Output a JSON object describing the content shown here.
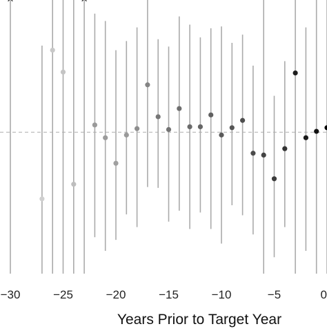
{
  "chart_data": {
    "type": "scatter",
    "subtype": "point-estimate-with-interval",
    "xlabel": "Years Prior to Target Year",
    "ylabel": "",
    "title": "",
    "xlim": [
      -30,
      0
    ],
    "ylim": [
      -1.55,
      1.45
    ],
    "x_ticks": [
      -30,
      -25,
      -20,
      -15,
      -10,
      -5,
      0
    ],
    "x_tick_labels": [
      "−30",
      "−25",
      "−20",
      "−15",
      "−10",
      "−5",
      "0"
    ],
    "reference_line": {
      "y": 0,
      "style": "dashed",
      "color": "#bdbdbd"
    },
    "grid": false,
    "legend": "none",
    "interval_color": "#aaaaaa",
    "top_markers": [
      {
        "x": -30,
        "symbol": "×"
      },
      {
        "x": -23,
        "symbol": "×"
      }
    ],
    "points": [
      {
        "x": -30,
        "y": null,
        "lo": -1.55,
        "hi": 1.45,
        "color": "#d9d9d9"
      },
      {
        "x": -27,
        "y": -0.73,
        "lo": -1.55,
        "hi": 0.95,
        "color": "#cfcfcf"
      },
      {
        "x": -26,
        "y": 0.9,
        "lo": -1.55,
        "hi": 1.45,
        "color": "#c8c8c8"
      },
      {
        "x": -25,
        "y": 0.66,
        "lo": -1.55,
        "hi": 1.45,
        "color": "#c4c4c4"
      },
      {
        "x": -24,
        "y": -0.57,
        "lo": -1.55,
        "hi": 1.45,
        "color": "#bebebe"
      },
      {
        "x": -23,
        "y": null,
        "lo": -1.55,
        "hi": 1.45,
        "color": "#bababa"
      },
      {
        "x": -22,
        "y": 0.08,
        "lo": -1.15,
        "hi": 1.3,
        "color": "#9a9a9a"
      },
      {
        "x": -21,
        "y": -0.06,
        "lo": -1.3,
        "hi": 1.22,
        "color": "#9c9c9c"
      },
      {
        "x": -20,
        "y": -0.34,
        "lo": -1.18,
        "hi": 0.9,
        "color": "#a0a0a0"
      },
      {
        "x": -19,
        "y": -0.03,
        "lo": -0.9,
        "hi": 1.0,
        "color": "#9a9a9a"
      },
      {
        "x": -18,
        "y": 0.04,
        "lo": -1.04,
        "hi": 1.15,
        "color": "#8e8e8e"
      },
      {
        "x": -17,
        "y": 0.52,
        "lo": -0.6,
        "hi": 1.45,
        "color": "#848484"
      },
      {
        "x": -16,
        "y": 0.17,
        "lo": -0.61,
        "hi": 1.02,
        "color": "#767676"
      },
      {
        "x": -15,
        "y": 0.03,
        "lo": -0.98,
        "hi": 0.94,
        "color": "#747474"
      },
      {
        "x": -14,
        "y": 0.26,
        "lo": -0.86,
        "hi": 1.27,
        "color": "#6e6e6e"
      },
      {
        "x": -13,
        "y": 0.06,
        "lo": -1.06,
        "hi": 1.18,
        "color": "#6a6a6a"
      },
      {
        "x": -12,
        "y": 0.06,
        "lo": -0.88,
        "hi": 1.04,
        "color": "#666666"
      },
      {
        "x": -11,
        "y": 0.19,
        "lo": -1.06,
        "hi": 1.14,
        "color": "#606060"
      },
      {
        "x": -10,
        "y": -0.03,
        "lo": -1.22,
        "hi": 1.16,
        "color": "#5a5a5a"
      },
      {
        "x": -9,
        "y": 0.05,
        "lo": -0.8,
        "hi": 0.98,
        "color": "#555555"
      },
      {
        "x": -8,
        "y": 0.13,
        "lo": -0.91,
        "hi": 1.07,
        "color": "#4e4e4e"
      },
      {
        "x": -7,
        "y": -0.23,
        "lo": -1.12,
        "hi": 0.73,
        "color": "#4a4a4a"
      },
      {
        "x": -6,
        "y": -0.25,
        "lo": -1.55,
        "hi": 1.45,
        "color": "#444444"
      },
      {
        "x": -5,
        "y": -0.51,
        "lo": -1.37,
        "hi": 0.4,
        "color": "#3c3c3c"
      },
      {
        "x": -4,
        "y": -0.18,
        "lo": -1.04,
        "hi": 0.78,
        "color": "#333333"
      },
      {
        "x": -3,
        "y": 0.65,
        "lo": -1.55,
        "hi": 1.45,
        "color": "#1e1e1e"
      },
      {
        "x": -2,
        "y": -0.06,
        "lo": -1.3,
        "hi": 1.15,
        "color": "#1a1a1a"
      },
      {
        "x": -1,
        "y": 0.01,
        "lo": -1.55,
        "hi": 1.45,
        "color": "#111111"
      },
      {
        "x": 0,
        "y": 0.05,
        "lo": -1.55,
        "hi": 1.45,
        "color": "#000000"
      }
    ]
  }
}
